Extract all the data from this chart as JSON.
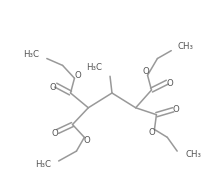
{
  "bg_color": "#ffffff",
  "line_color": "#999999",
  "text_color": "#555555",
  "line_width": 1.1,
  "font_size": 6.2,
  "coords": {
    "c1": [
      88,
      108
    ],
    "c2": [
      115,
      93
    ],
    "c3": [
      140,
      108
    ]
  }
}
